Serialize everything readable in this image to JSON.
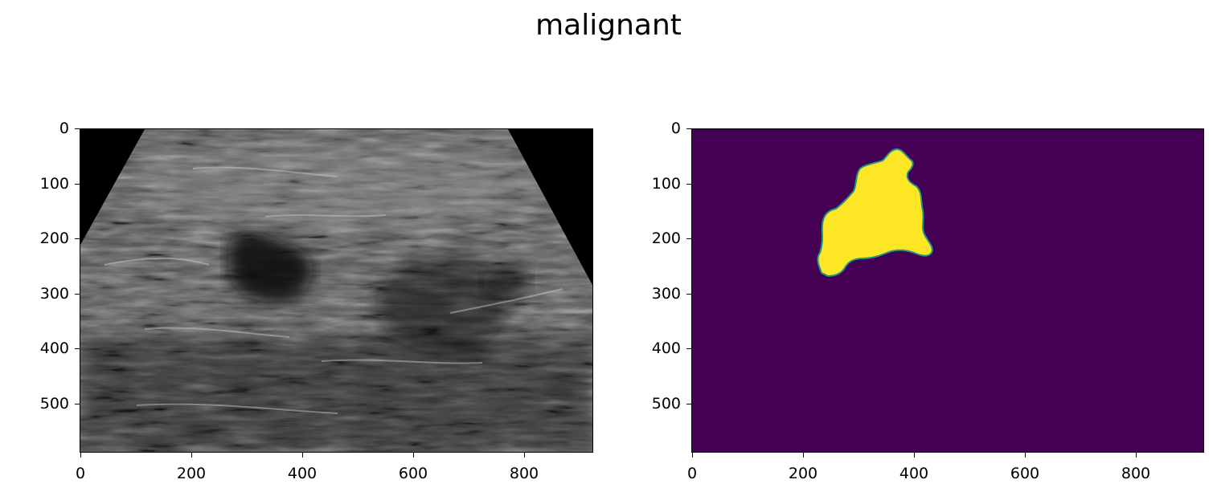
{
  "figure": {
    "title": "malignant",
    "panels": [
      {
        "kind": "ultrasound-image",
        "xticks": [
          "0",
          "200",
          "400",
          "600",
          "800"
        ],
        "yticks": [
          "0",
          "100",
          "200",
          "300",
          "400",
          "500"
        ],
        "x_range": [
          0,
          924
        ],
        "y_range": [
          0,
          588
        ]
      },
      {
        "kind": "segmentation-mask",
        "colormap": {
          "background": "#440154",
          "lesion": "#fde725",
          "edge": "#21918c"
        },
        "xticks": [
          "0",
          "200",
          "400",
          "600",
          "800"
        ],
        "yticks": [
          "0",
          "100",
          "200",
          "300",
          "400",
          "500"
        ],
        "x_range": [
          0,
          924
        ],
        "y_range": [
          0,
          588
        ]
      }
    ]
  }
}
